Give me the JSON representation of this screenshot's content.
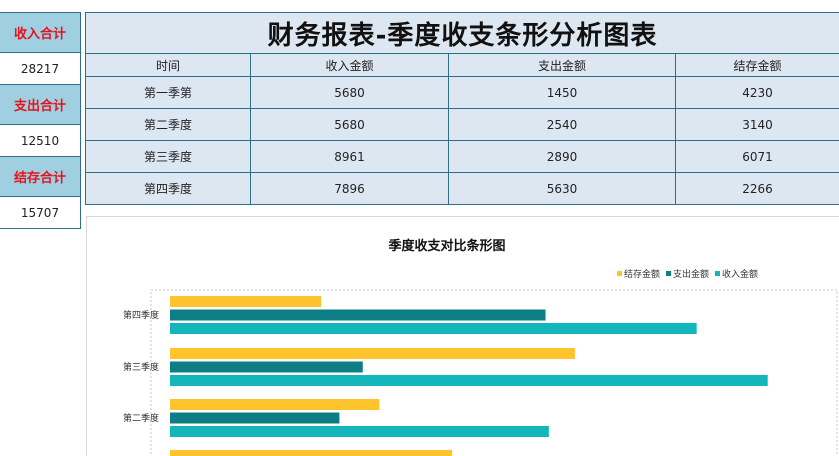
{
  "summary": {
    "income_label": "收入合计",
    "income_value": "28217",
    "expense_label": "支出合计",
    "expense_value": "12510",
    "balance_label": "结存合计",
    "balance_value": "15707"
  },
  "report": {
    "title": "财务报表-季度收支条形分析图表",
    "headers": [
      "时间",
      "收入金额",
      "支出金额",
      "结存金额"
    ],
    "rows": [
      [
        "第一季第",
        "5680",
        "1450",
        "4230"
      ],
      [
        "第二季度",
        "5680",
        "2540",
        "3140"
      ],
      [
        "第三季度",
        "8961",
        "2890",
        "6071"
      ],
      [
        "第四季度",
        "7896",
        "5630",
        "2266"
      ]
    ]
  },
  "colors": {
    "balance": "#ffc32b",
    "expense": "#0e7e86",
    "income": "#13b6bb",
    "summary_label_bg": "#9fcfe0",
    "summary_label_text": "#e8111b",
    "table_bg": "#dde7f1",
    "border": "#2e6f8a"
  },
  "chart_data": {
    "type": "bar",
    "orientation": "horizontal",
    "title": "季度收支对比条形图",
    "categories": [
      "第四季度",
      "第三季度",
      "第二季度"
    ],
    "series": [
      {
        "name": "结存金额",
        "values": [
          2266,
          6071,
          3140
        ]
      },
      {
        "name": "支出金额",
        "values": [
          5630,
          2890,
          2540
        ]
      },
      {
        "name": "收入金额",
        "values": [
          7896,
          8961,
          5680
        ]
      }
    ],
    "partially_visible_category_bar": {
      "series": "结存金额",
      "value": 4230
    },
    "xlim": [
      0,
      10000
    ],
    "legend_position": "top-right",
    "grid": false
  }
}
